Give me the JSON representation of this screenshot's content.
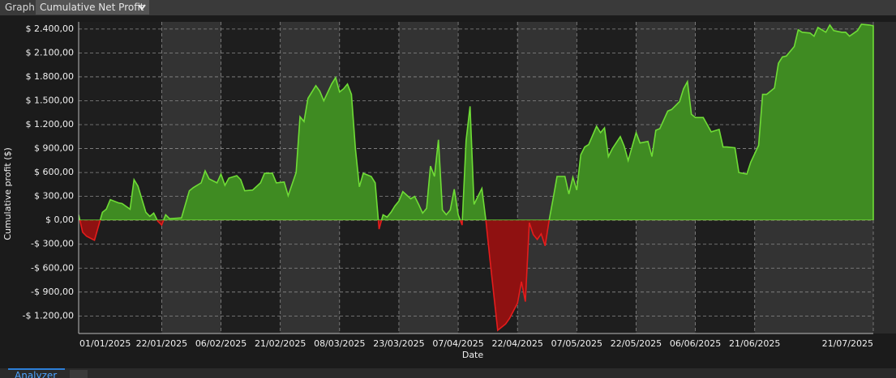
{
  "ui": {
    "panel_label": "Graph",
    "selector": "Cumulative Net Profit",
    "bottom_tab": "Analyzer"
  },
  "chart_data": {
    "type": "area",
    "x_label": "Date",
    "y_label": "Cumulative profit ($)",
    "x": [
      "2025-01-01",
      "2025-01-02",
      "2025-01-03",
      "2025-01-05",
      "2025-01-07",
      "2025-01-08",
      "2025-01-09",
      "2025-01-11",
      "2025-01-12",
      "2025-01-14",
      "2025-01-15",
      "2025-01-16",
      "2025-01-18",
      "2025-01-19",
      "2025-01-20",
      "2025-01-21",
      "2025-01-22",
      "2025-01-23",
      "2025-01-24",
      "2025-01-27",
      "2025-01-29",
      "2025-01-30",
      "2025-02-01",
      "2025-02-02",
      "2025-02-03",
      "2025-02-05",
      "2025-02-06",
      "2025-02-07",
      "2025-02-08",
      "2025-02-10",
      "2025-02-11",
      "2025-02-12",
      "2025-02-14",
      "2025-02-16",
      "2025-02-17",
      "2025-02-19",
      "2025-02-20",
      "2025-02-22",
      "2025-02-23",
      "2025-02-25",
      "2025-02-26",
      "2025-02-27",
      "2025-02-28",
      "2025-03-02",
      "2025-03-03",
      "2025-03-04",
      "2025-03-06",
      "2025-03-07",
      "2025-03-08",
      "2025-03-09",
      "2025-03-10",
      "2025-03-11",
      "2025-03-12",
      "2025-03-13",
      "2025-03-14",
      "2025-03-16",
      "2025-03-17",
      "2025-03-18",
      "2025-03-19",
      "2025-03-20",
      "2025-03-21",
      "2025-03-22",
      "2025-03-23",
      "2025-03-24",
      "2025-03-26",
      "2025-03-27",
      "2025-03-28",
      "2025-03-29",
      "2025-03-30",
      "2025-03-31",
      "2025-04-01",
      "2025-04-02",
      "2025-04-03",
      "2025-04-04",
      "2025-04-05",
      "2025-04-06",
      "2025-04-07",
      "2025-04-08",
      "2025-04-09",
      "2025-04-10",
      "2025-04-11",
      "2025-04-12",
      "2025-04-13",
      "2025-04-14",
      "2025-04-15",
      "2025-04-17",
      "2025-04-19",
      "2025-04-20",
      "2025-04-22",
      "2025-04-23",
      "2025-04-24",
      "2025-04-25",
      "2025-04-26",
      "2025-04-27",
      "2025-04-28",
      "2025-04-29",
      "2025-04-30",
      "2025-05-01",
      "2025-05-02",
      "2025-05-03",
      "2025-05-04",
      "2025-05-05",
      "2025-05-06",
      "2025-05-07",
      "2025-05-08",
      "2025-05-09",
      "2025-05-10",
      "2025-05-12",
      "2025-05-13",
      "2025-05-14",
      "2025-05-15",
      "2025-05-16",
      "2025-05-18",
      "2025-05-19",
      "2025-05-20",
      "2025-05-22",
      "2025-05-23",
      "2025-05-25",
      "2025-05-26",
      "2025-05-27",
      "2025-05-28",
      "2025-05-30",
      "2025-05-31",
      "2025-06-02",
      "2025-06-03",
      "2025-06-04",
      "2025-06-05",
      "2025-06-06",
      "2025-06-08",
      "2025-06-09",
      "2025-06-10",
      "2025-06-12",
      "2025-06-13",
      "2025-06-14",
      "2025-06-16",
      "2025-06-17",
      "2025-06-19",
      "2025-06-20",
      "2025-06-22",
      "2025-06-23",
      "2025-06-24",
      "2025-06-26",
      "2025-06-27",
      "2025-06-28",
      "2025-06-29",
      "2025-07-01",
      "2025-07-02",
      "2025-07-03",
      "2025-07-05",
      "2025-07-06",
      "2025-07-07",
      "2025-07-09",
      "2025-07-10",
      "2025-07-11",
      "2025-07-12",
      "2025-07-13",
      "2025-07-14",
      "2025-07-15",
      "2025-07-17",
      "2025-07-18",
      "2025-07-20",
      "2025-07-21"
    ],
    "values": [
      70,
      -150,
      -200,
      -250,
      100,
      140,
      260,
      220,
      210,
      140,
      510,
      430,
      100,
      50,
      90,
      -10,
      -60,
      70,
      20,
      30,
      370,
      410,
      470,
      620,
      520,
      470,
      580,
      440,
      530,
      560,
      510,
      370,
      380,
      470,
      590,
      590,
      470,
      480,
      310,
      600,
      1300,
      1240,
      1530,
      1690,
      1620,
      1500,
      1710,
      1790,
      1610,
      1650,
      1710,
      1580,
      900,
      420,
      590,
      550,
      470,
      -110,
      70,
      40,
      100,
      180,
      240,
      360,
      270,
      300,
      200,
      90,
      150,
      680,
      550,
      1010,
      130,
      70,
      130,
      390,
      70,
      -60,
      1000,
      1430,
      200,
      300,
      400,
      0,
      -480,
      -1380,
      -1300,
      -1230,
      -1040,
      -770,
      -1020,
      -30,
      -180,
      -240,
      -170,
      -320,
      0,
      270,
      550,
      550,
      550,
      330,
      540,
      380,
      820,
      920,
      950,
      1180,
      1100,
      1160,
      800,
      900,
      1050,
      930,
      750,
      1100,
      970,
      990,
      800,
      1130,
      1150,
      1370,
      1390,
      1490,
      1650,
      1740,
      1330,
      1290,
      1290,
      1200,
      1110,
      1140,
      920,
      920,
      910,
      600,
      580,
      730,
      940,
      1580,
      1580,
      1660,
      1970,
      2050,
      2060,
      2180,
      2390,
      2360,
      2350,
      2310,
      2420,
      2360,
      2450,
      2380,
      2370,
      2360,
      2360,
      2310,
      2380,
      2460,
      2450,
      2440
    ],
    "positive_color": "#3f8b22",
    "positive_line_color": "#6fdc36",
    "negative_color": "#8f1111",
    "negative_line_color": "#e51c1c",
    "ylim": [
      -1420,
      2490
    ],
    "yticks": [
      {
        "value": -1200,
        "label": "-$ 1.200,00"
      },
      {
        "value": -900,
        "label": "-$ 900,00"
      },
      {
        "value": -600,
        "label": "-$ 600,00"
      },
      {
        "value": -300,
        "label": "-$ 300,00"
      },
      {
        "value": 0,
        "label": "$ 0,00"
      },
      {
        "value": 300,
        "label": "$ 300,00"
      },
      {
        "value": 600,
        "label": "$ 600,00"
      },
      {
        "value": 900,
        "label": "$ 900,00"
      },
      {
        "value": 1200,
        "label": "$ 1.200,00"
      },
      {
        "value": 1500,
        "label": "$ 1.500,00"
      },
      {
        "value": 1800,
        "label": "$ 1.800,00"
      },
      {
        "value": 2100,
        "label": "$ 2.100,00"
      },
      {
        "value": 2400,
        "label": "$ 2.400,00"
      }
    ],
    "xlim": [
      "2025-01-01",
      "2025-07-21"
    ],
    "xticks": [
      {
        "value": "2025-01-01",
        "label": "01/01/2025"
      },
      {
        "value": "2025-01-22",
        "label": "22/01/2025"
      },
      {
        "value": "2025-02-06",
        "label": "06/02/2025"
      },
      {
        "value": "2025-02-21",
        "label": "21/02/2025"
      },
      {
        "value": "2025-03-08",
        "label": "08/03/2025"
      },
      {
        "value": "2025-03-23",
        "label": "23/03/2025"
      },
      {
        "value": "2025-04-07",
        "label": "07/04/2025"
      },
      {
        "value": "2025-04-22",
        "label": "22/04/2025"
      },
      {
        "value": "2025-05-07",
        "label": "07/05/2025"
      },
      {
        "value": "2025-05-22",
        "label": "22/05/2025"
      },
      {
        "value": "2025-06-06",
        "label": "06/06/2025"
      },
      {
        "value": "2025-06-21",
        "label": "21/06/2025"
      },
      {
        "value": "2025-07-21",
        "label": "21/07/2025"
      }
    ],
    "grid": true
  }
}
